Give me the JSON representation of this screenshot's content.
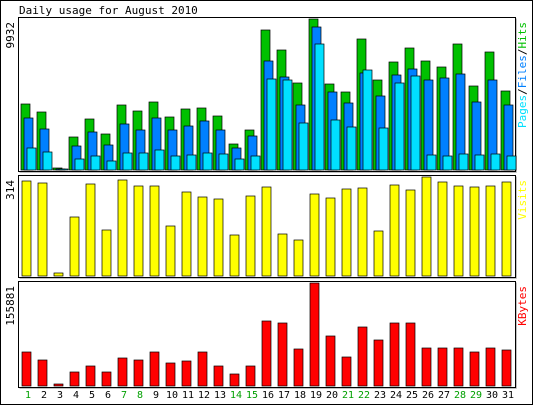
{
  "chart_data": {
    "type": "bar",
    "title": "Daily usage for August 2010",
    "categories": [
      "1",
      "2",
      "3",
      "4",
      "5",
      "6",
      "7",
      "8",
      "9",
      "10",
      "11",
      "12",
      "13",
      "14",
      "15",
      "16",
      "17",
      "18",
      "19",
      "20",
      "21",
      "22",
      "23",
      "24",
      "25",
      "26",
      "27",
      "28",
      "29",
      "30",
      "31"
    ],
    "weekend_days": [
      "1",
      "7",
      "8",
      "14",
      "15",
      "21",
      "22",
      "28",
      "29"
    ],
    "panels": [
      {
        "id": "hits",
        "ylabel": [
          "Pages",
          "/",
          "Files",
          "/",
          "Hits"
        ],
        "ymax_label": "9932",
        "ymax": 9932,
        "series": [
          {
            "name": "Hits",
            "color": "#00c000",
            "values": [
              4350,
              3800,
              100,
              2200,
              3350,
              2400,
              4250,
              3900,
              4450,
              3500,
              4000,
              4050,
              3550,
              1700,
              2650,
              9200,
              7900,
              5700,
              9932,
              5650,
              5100,
              8600,
              5950,
              7100,
              8000,
              7200,
              6800,
              8300,
              5500,
              7750,
              5200
            ]
          },
          {
            "name": "Files",
            "color": "#0080ff",
            "values": [
              3450,
              2700,
              50,
              1600,
              2500,
              1650,
              3050,
              2650,
              3450,
              2600,
              2900,
              3200,
              2650,
              1450,
              2250,
              7150,
              6100,
              4300,
              9400,
              5100,
              4400,
              6350,
              4900,
              6250,
              6650,
              5900,
              6050,
              6300,
              4450,
              5900,
              4300
            ]
          },
          {
            "name": "Pages",
            "color": "#00e0ff",
            "values": [
              1450,
              1200,
              20,
              700,
              900,
              600,
              1150,
              1150,
              1300,
              950,
              1000,
              1150,
              1050,
              700,
              900,
              6000,
              5950,
              3100,
              8300,
              3300,
              2850,
              6550,
              2750,
              5700,
              6200,
              1000,
              950,
              1050,
              1000,
              1050,
              900
            ]
          }
        ]
      },
      {
        "id": "visits",
        "ylabel": [
          "Visits"
        ],
        "ymax_label": "314",
        "ymax": 314,
        "series": [
          {
            "name": "Visits",
            "color": "#ffff00",
            "values": [
              300,
              295,
              8,
              188,
              293,
              145,
              304,
              287,
              287,
              160,
              268,
              249,
              244,
              130,
              254,
              282,
              132,
              114,
              260,
              248,
              276,
              279,
              143,
              289,
              274,
              314,
              298,
              287,
              282,
              287,
              298
            ]
          }
        ]
      },
      {
        "id": "kbytes",
        "ylabel": [
          "KBytes"
        ],
        "ymax_label": "155881",
        "ymax": 155881,
        "series": [
          {
            "name": "KBytes",
            "color": "#ff0000",
            "values": [
              52000,
              40000,
              3000,
              21000,
              30000,
              21000,
              42000,
              40000,
              52000,
              35000,
              38000,
              52000,
              30000,
              18000,
              30000,
              99000,
              96000,
              56000,
              155881,
              76000,
              44000,
              90000,
              70000,
              95000,
              95000,
              58000,
              58000,
              58000,
              51000,
              58000,
              55000
            ]
          }
        ]
      }
    ]
  }
}
